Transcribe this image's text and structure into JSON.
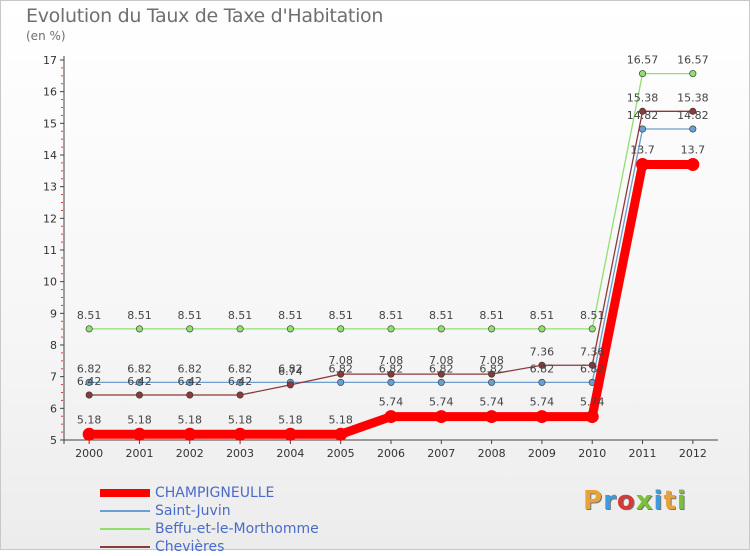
{
  "header": {
    "title": "Evolution du Taux de Taxe d'Habitation",
    "subtitle": "(en %)"
  },
  "logo": {
    "text": "Proxiti",
    "colors": [
      "#e8a23a",
      "#3d9be0",
      "#d33a3a",
      "#7bbf3a",
      "#3d9be0",
      "#e8a23a",
      "#7bbf3a"
    ]
  },
  "chart_data": {
    "type": "line",
    "x": [
      2000,
      2001,
      2002,
      2003,
      2004,
      2005,
      2006,
      2007,
      2008,
      2009,
      2010,
      2011,
      2012
    ],
    "ylim": [
      5,
      17
    ],
    "yticks": [
      5,
      6,
      7,
      8,
      9,
      10,
      11,
      12,
      13,
      14,
      15,
      16,
      17
    ],
    "grid": false,
    "legend_position": "bottom-left",
    "series": [
      {
        "name": "CHAMPIGNEULLE",
        "color": "#ff0000",
        "values": [
          5.18,
          5.18,
          5.18,
          5.18,
          5.18,
          5.18,
          5.74,
          5.74,
          5.74,
          5.74,
          5.74,
          13.7,
          13.7
        ],
        "labels": [
          "5.18",
          "5.18",
          "5.18",
          "5.18",
          "5.18",
          "5.18",
          "5.74",
          "5.74",
          "5.74",
          "5.74",
          "5.74",
          "13.7",
          "13.7"
        ]
      },
      {
        "name": "Saint-Juvin",
        "color": "#6a9fd0",
        "values": [
          6.82,
          6.82,
          6.82,
          6.82,
          6.82,
          6.82,
          6.82,
          6.82,
          6.82,
          6.82,
          6.82,
          14.82,
          14.82
        ],
        "labels": [
          "6.82",
          "6.82",
          "6.82",
          "6.82",
          "6.82",
          "6.82",
          "6.82",
          "6.82",
          "6.82",
          "6.82",
          "6.82",
          "14.82",
          "14.82"
        ]
      },
      {
        "name": "Beffu-et-le-Morthomme",
        "color": "#90e070",
        "values": [
          8.51,
          8.51,
          8.51,
          8.51,
          8.51,
          8.51,
          8.51,
          8.51,
          8.51,
          8.51,
          8.51,
          16.57,
          16.57
        ],
        "labels": [
          "8.51",
          "8.51",
          "8.51",
          "8.51",
          "8.51",
          "8.51",
          "8.51",
          "8.51",
          "8.51",
          "8.51",
          "8.51",
          "16.57",
          "16.57"
        ]
      },
      {
        "name": "Chevières",
        "color": "#8b3a3a",
        "values": [
          6.42,
          6.42,
          6.42,
          6.42,
          6.74,
          7.08,
          7.08,
          7.08,
          7.08,
          7.36,
          7.36,
          15.38,
          15.38
        ],
        "labels": [
          "6.42",
          "6.42",
          "6.42",
          "6.42",
          "6.74",
          "7.08",
          "7.08",
          "7.08",
          "7.08",
          "7.36",
          "7.36",
          "15.38",
          "15.38"
        ]
      }
    ]
  }
}
